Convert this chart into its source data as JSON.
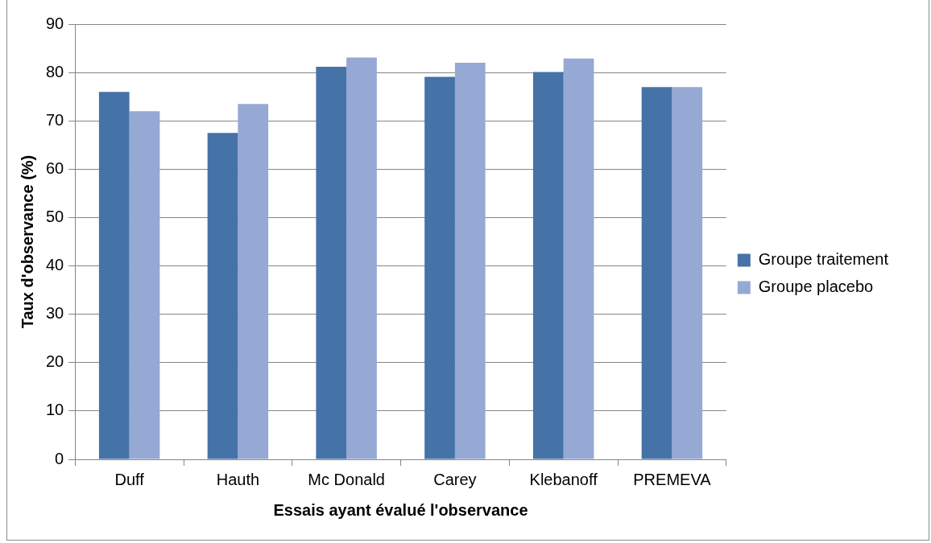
{
  "chart_data": {
    "type": "bar",
    "xlabel": "Essais ayant évalué l'observance",
    "ylabel": "Taux d'observance (%)",
    "categories": [
      "Duff",
      "Hauth",
      "Mc Donald",
      "Carey",
      "Klebanoff",
      "PREMEVA"
    ],
    "series": [
      {
        "name": "Groupe traitement",
        "color": "#4572a7",
        "values": [
          76,
          67.5,
          81.2,
          79.1,
          80.1,
          77
        ]
      },
      {
        "name": "Groupe placebo",
        "color": "#95a9d4",
        "values": [
          72,
          73.5,
          83.1,
          82,
          82.9,
          77
        ]
      }
    ],
    "ylim": [
      0,
      90
    ],
    "yticks": [
      0,
      10,
      20,
      30,
      40,
      50,
      60,
      70,
      80,
      90
    ],
    "grid": "y",
    "legend": "right"
  }
}
